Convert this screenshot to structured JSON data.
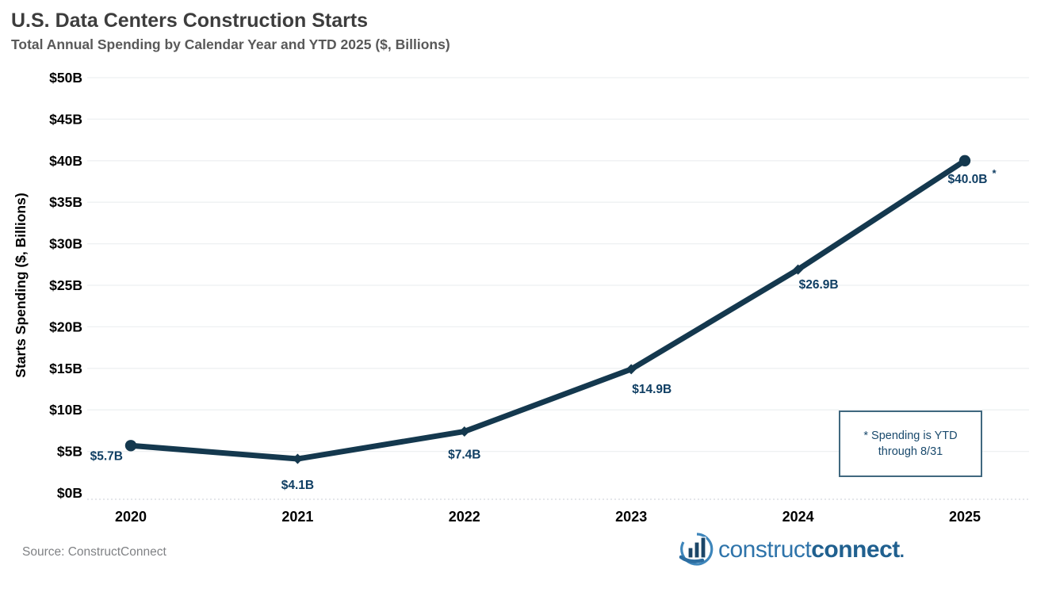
{
  "header": {
    "title": "U.S. Data Centers Construction Starts",
    "subtitle": "Total Annual Spending by Calendar Year and YTD 2025 ($, Billions)"
  },
  "chart_data": {
    "type": "line",
    "title": "U.S. Data Centers Construction Starts",
    "subtitle": "Total Annual Spending by Calendar Year and YTD 2025 ($, Billions)",
    "categories": [
      "2020",
      "2021",
      "2022",
      "2023",
      "2024",
      "2025"
    ],
    "series": [
      {
        "name": "Starts Spending",
        "values": [
          5.7,
          4.1,
          7.4,
          14.9,
          26.9,
          40.0
        ]
      }
    ],
    "point_labels": [
      "$5.7B",
      "$4.1B",
      "$7.4B",
      "$14.9B",
      "$26.9B",
      "$40.0B"
    ],
    "footnote_marker": "*",
    "footnote_point_index": 5,
    "xlabel": "",
    "ylabel": "Starts Spending ($, Billions)",
    "ylim": [
      0,
      50
    ],
    "ytick_step": 5,
    "ytick_labels": [
      "$0B",
      "$5B",
      "$10B",
      "$15B",
      "$20B",
      "$25B",
      "$30B",
      "$35B",
      "$40B",
      "$45B",
      "$50B"
    ],
    "grid": "horizontal",
    "legend": "none",
    "line_color": "#14384e",
    "point_label_color": "#0f3e63",
    "tick_label_color": "#000000",
    "gridline_color": "#eef0f2",
    "axisline_color": "#c9ced4"
  },
  "annotation": {
    "line1": "*  Spending is YTD",
    "line2": "through 8/31"
  },
  "footer": {
    "source": "Source: ConstructConnect",
    "logo_construct": "construct",
    "logo_connect": "connect",
    "logo_dot": "."
  }
}
